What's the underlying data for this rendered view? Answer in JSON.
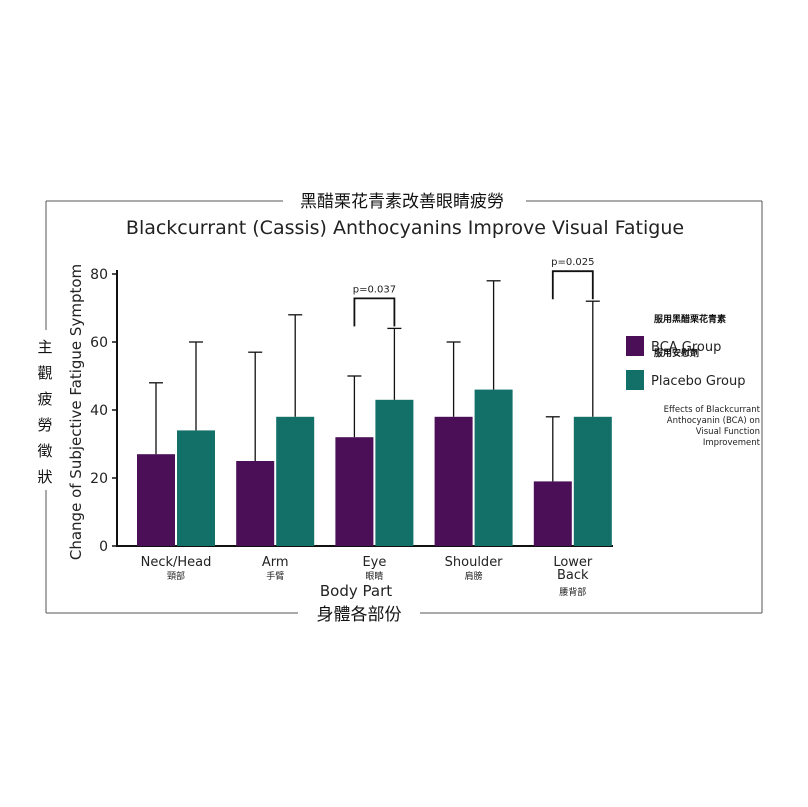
{
  "chart_data": {
    "type": "bar",
    "title_zh": "黑醋栗花青素改善眼睛疲勞",
    "title": "Blackcurrant (Cassis) Anthocyanins Improve Visual Fatigue",
    "xlabel": "Body Part",
    "xlabel_zh": "身體各部份",
    "ylabel": "Change of Subjective Fatigue Symptom",
    "ylabel_zh": "主觀疲勞徵狀",
    "ylim": [
      0,
      80
    ],
    "yticks": [
      0,
      20,
      40,
      60,
      80
    ],
    "categories": [
      "Neck/Head",
      "Arm",
      "Eye",
      "Shoulder",
      "Lower Back"
    ],
    "categories_display": [
      [
        "Neck/Head"
      ],
      [
        "Arm"
      ],
      [
        "Eye"
      ],
      [
        "Shoulder"
      ],
      [
        "Lower",
        "Back"
      ]
    ],
    "categories_zh": [
      "頸部",
      "手臂",
      "眼睛",
      "肩膀",
      "腰背部"
    ],
    "series": [
      {
        "name": "BCA Group",
        "name_zh": "服用黑醋栗花青素",
        "color": "#4a0f57",
        "values": [
          27,
          25,
          32,
          38,
          19
        ],
        "error_upper": [
          48,
          57,
          50,
          60,
          38
        ]
      },
      {
        "name": "Placebo Group",
        "name_zh": "服用安慰劑",
        "color": "#127068",
        "values": [
          34,
          38,
          43,
          46,
          38
        ],
        "error_upper": [
          60,
          68,
          64,
          78,
          72
        ]
      }
    ],
    "significance": [
      {
        "category": "Eye",
        "label": "p=0.037"
      },
      {
        "category": "Lower Back",
        "label": "p=0.025"
      }
    ],
    "legend": {
      "position": "right",
      "note": [
        "Effects of Blackcurrant",
        "Anthocyanin (BCA) on",
        "Visual Function",
        "Improvement"
      ]
    },
    "grid": false
  }
}
